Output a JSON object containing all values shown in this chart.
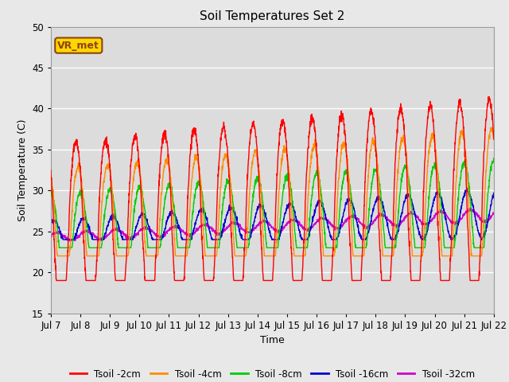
{
  "title": "Soil Temperatures Set 2",
  "xlabel": "Time",
  "ylabel": "Soil Temperature (C)",
  "ylim": [
    15,
    50
  ],
  "yticks": [
    15,
    20,
    25,
    30,
    35,
    40,
    45,
    50
  ],
  "x_labels": [
    "Jul 7",
    "Jul 8",
    "Jul 9",
    "Jul 10",
    "Jul 11",
    "Jul 12",
    "Jul 13",
    "Jul 14",
    "Jul 15",
    "Jul 16",
    "Jul 17",
    "Jul 18",
    "Jul 19",
    "Jul 20",
    "Jul 21",
    "Jul 22"
  ],
  "annotation_text": "VR_met",
  "annotation_color": "#8B4513",
  "annotation_bg": "#FFD700",
  "series_colors": {
    "Tsoil -2cm": "#FF0000",
    "Tsoil -4cm": "#FF8C00",
    "Tsoil -8cm": "#00CC00",
    "Tsoil -16cm": "#0000CC",
    "Tsoil -32cm": "#CC00CC"
  },
  "fig_bg_color": "#E8E8E8",
  "plot_bg_color": "#DCDCDC",
  "title_fontsize": 11,
  "axis_fontsize": 9,
  "legend_fontsize": 8.5
}
